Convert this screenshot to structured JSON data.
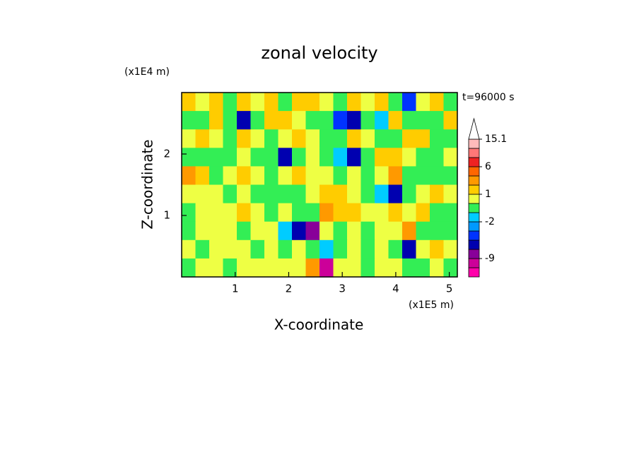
{
  "chart_data": {
    "type": "contour",
    "title": "zonal velocity",
    "x_label": "X-coordinate",
    "y_label": "Z-coordinate",
    "x_unit": "(x1E5 m)",
    "y_unit": "(x1E4 m)",
    "annotation": "t=96000 s",
    "xlim": [
      0,
      5.15
    ],
    "ylim": [
      0,
      3
    ],
    "xticks": [
      1,
      2,
      3,
      4,
      5
    ],
    "yticks": [
      1,
      2
    ],
    "z": [
      [
        2,
        0.5,
        2,
        -0.5,
        2,
        0.5,
        1.5,
        -0.5,
        2,
        1.5,
        0.5,
        -0.5,
        2,
        0.5,
        1.5,
        -0.5,
        -3,
        0.5,
        2,
        -0.5
      ],
      [
        -0.5,
        -0.5,
        2,
        -0.5,
        -4,
        -0.5,
        2,
        1.5,
        0.5,
        -0.5,
        -0.5,
        -3,
        -4,
        -0.5,
        -1.5,
        2,
        -0.5,
        -0.5,
        -0.5,
        2
      ],
      [
        0.5,
        1.5,
        0.5,
        -0.5,
        1.5,
        0.5,
        -0.5,
        0.5,
        1.5,
        0.5,
        -0.5,
        -0.5,
        1.5,
        0.5,
        -0.5,
        -0.5,
        1.5,
        1.5,
        -0.5,
        -0.5
      ],
      [
        -0.5,
        -0.5,
        -0.5,
        -0.5,
        0.5,
        -0.5,
        -0.5,
        -4,
        -0.5,
        0.5,
        -0.5,
        -1.5,
        -4,
        -0.5,
        2,
        1.5,
        0.5,
        -0.5,
        -0.5,
        0.5
      ],
      [
        2.5,
        1.5,
        -0.5,
        0.5,
        1.5,
        0.5,
        -0.5,
        0.5,
        1.5,
        0.5,
        0.5,
        -0.5,
        0.5,
        -0.5,
        0.5,
        2.5,
        -0.5,
        -0.5,
        -0.5,
        -0.5
      ],
      [
        0.5,
        0.5,
        0.5,
        -0.5,
        0.5,
        -0.5,
        -0.5,
        -0.5,
        -0.5,
        0.5,
        2,
        1.5,
        0.5,
        -0.5,
        -1.5,
        -4,
        -0.5,
        0.5,
        1.5,
        0.5
      ],
      [
        -0.5,
        0.5,
        0.5,
        0.5,
        1.5,
        0.5,
        -0.5,
        0.5,
        -0.5,
        -0.5,
        2.5,
        1.5,
        2,
        0.5,
        0.5,
        2,
        0.5,
        2,
        -0.5,
        -0.5
      ],
      [
        -0.5,
        0.5,
        0.5,
        0.5,
        -0.5,
        0.5,
        0.5,
        -1.5,
        -4,
        -7,
        0.5,
        -0.5,
        0.5,
        -0.5,
        0.5,
        0.5,
        2.5,
        -0.5,
        -0.5,
        -0.5
      ],
      [
        0.5,
        -0.5,
        0.5,
        0.5,
        0.5,
        -0.5,
        0.5,
        -0.5,
        0.5,
        -0.5,
        -1.5,
        -0.5,
        0.5,
        -0.5,
        0.5,
        -0.5,
        -4,
        0.5,
        2,
        0.5
      ],
      [
        -0.5,
        0.5,
        0.5,
        -0.5,
        0.5,
        0.5,
        0.5,
        0.5,
        0.5,
        2.5,
        -10,
        0.5,
        0.5,
        -0.5,
        0.5,
        0.5,
        -0.5,
        -0.5,
        0.5,
        -0.5
      ]
    ],
    "colorbar": {
      "levels": [
        -12,
        -9,
        -6,
        -4,
        -3,
        -2,
        -1,
        0,
        1,
        2,
        3,
        6,
        9,
        12,
        15.1
      ],
      "colors": [
        "#ff00aa",
        "#cc0099",
        "#880099",
        "#0000b0",
        "#0033ff",
        "#0099ff",
        "#00ccff",
        "#33ee55",
        "#eeff44",
        "#ffcc00",
        "#ff9900",
        "#ff6600",
        "#ee2222",
        "#ff7777",
        "#ffbbbb"
      ],
      "over_color": "#ffffff",
      "ticks": [
        -9,
        -2,
        1,
        6,
        15.1
      ]
    }
  }
}
